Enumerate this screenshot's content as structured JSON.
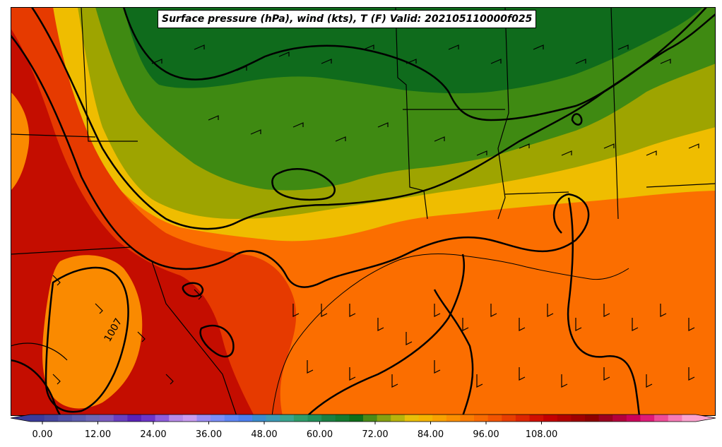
{
  "title": "Surface pressure (hPa), wind (kts), T (F) Valid: 202105110000f025",
  "contour_label": "1007",
  "colorbar": {
    "ticks": [
      "0.00",
      "12.00",
      "24.00",
      "36.00",
      "48.00",
      "60.00",
      "72.00",
      "84.00",
      "96.00",
      "108.00"
    ],
    "colors": [
      "#3b3b9a",
      "#46469e",
      "#5252a6",
      "#5d5dad",
      "#6d66b3",
      "#7c5cc0",
      "#6a3fbf",
      "#5a22b8",
      "#6d35c9",
      "#8f5ddc",
      "#b78be8",
      "#c99cf0",
      "#9c8cf3",
      "#7b8ff8",
      "#5f86f5",
      "#4c7ff0",
      "#3a8ccf",
      "#3c9ab6",
      "#3aa58f",
      "#2f9d6a",
      "#22905a",
      "#1a8043",
      "#147a2f",
      "#0f6e19",
      "#4a8a16",
      "#86a011",
      "#b8b40b",
      "#e9bf08",
      "#f5b400",
      "#f9a200",
      "#fb8f00",
      "#fb7c00",
      "#f86a00",
      "#f25400",
      "#e83e00",
      "#dd2600",
      "#d10f00",
      "#c40000",
      "#b20000",
      "#a00000",
      "#8f0000",
      "#9b0020",
      "#b4003c",
      "#cc0059",
      "#df1b78",
      "#ef4c98",
      "#f77bb6",
      "#fca3cf"
    ]
  },
  "map_colors": {
    "hot": "#c40d00",
    "warm_red": "#e63a00",
    "orange": "#fb6e00",
    "orange_light": "#fa8a00",
    "yellow": "#efbd00",
    "olive": "#9ea400",
    "green": "#3f8a12",
    "green_dark": "#0f6b1c"
  }
}
